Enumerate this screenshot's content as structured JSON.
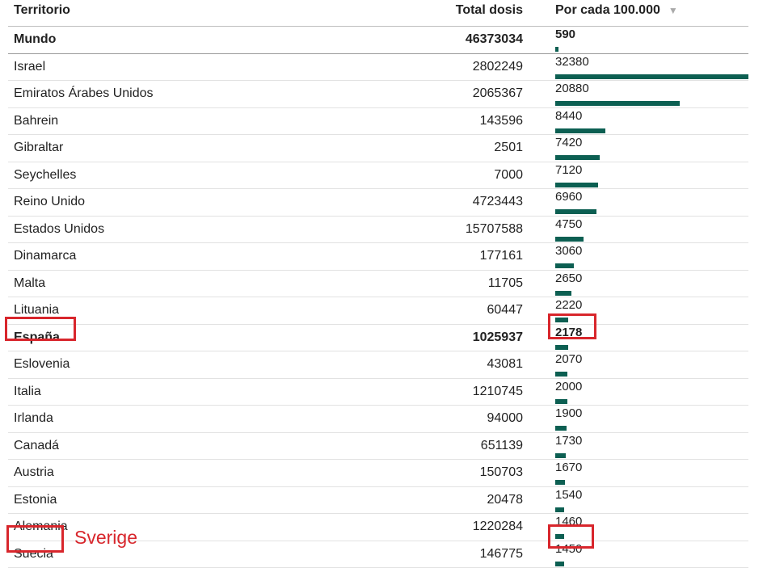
{
  "header": {
    "territory": "Territorio",
    "total_doses": "Total dosis",
    "per_100k": "Por cada 100.000",
    "sort_indicator": "▼"
  },
  "rows": [
    {
      "name": "Mundo",
      "total": "46373034",
      "rate": "590",
      "bold": true
    },
    {
      "name": "Israel",
      "total": "2802249",
      "rate": "32380"
    },
    {
      "name": "Emiratos Árabes Unidos",
      "total": "2065367",
      "rate": "20880"
    },
    {
      "name": "Bahrein",
      "total": "143596",
      "rate": "8440"
    },
    {
      "name": "Gibraltar",
      "total": "2501",
      "rate": "7420"
    },
    {
      "name": "Seychelles",
      "total": "7000",
      "rate": "7120"
    },
    {
      "name": "Reino Unido",
      "total": "4723443",
      "rate": "6960"
    },
    {
      "name": "Estados Unidos",
      "total": "15707588",
      "rate": "4750"
    },
    {
      "name": "Dinamarca",
      "total": "177161",
      "rate": "3060"
    },
    {
      "name": "Malta",
      "total": "11705",
      "rate": "2650"
    },
    {
      "name": "Lituania",
      "total": "60447",
      "rate": "2220"
    },
    {
      "name": "España",
      "total": "1025937",
      "rate": "2178",
      "bold": true
    },
    {
      "name": "Eslovenia",
      "total": "43081",
      "rate": "2070"
    },
    {
      "name": "Italia",
      "total": "1210745",
      "rate": "2000"
    },
    {
      "name": "Irlanda",
      "total": "94000",
      "rate": "1900"
    },
    {
      "name": "Canadá",
      "total": "651139",
      "rate": "1730"
    },
    {
      "name": "Austria",
      "total": "150703",
      "rate": "1670"
    },
    {
      "name": "Estonia",
      "total": "20478",
      "rate": "1540"
    },
    {
      "name": "Alemania",
      "total": "1220284",
      "rate": "1460"
    },
    {
      "name": "Suecia",
      "total": "146775",
      "rate": "1450"
    }
  ],
  "annotation": {
    "sverige": "Sverige",
    "box_color": "#d8262c"
  },
  "bar_color": "#0c5f52",
  "bar_max_value": 32380
}
